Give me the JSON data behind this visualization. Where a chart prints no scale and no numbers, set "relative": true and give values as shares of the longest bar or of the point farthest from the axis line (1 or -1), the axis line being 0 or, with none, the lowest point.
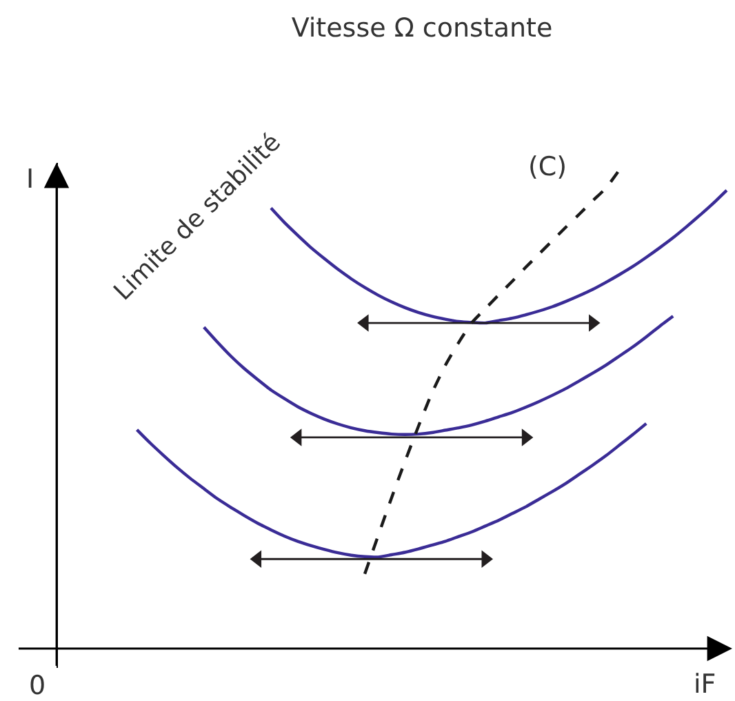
{
  "chart_data": {
    "type": "line",
    "title": "Vitesse Ω constante",
    "xlabel": "iF",
    "ylabel": "I",
    "relative": true,
    "line_style": "solid",
    "annotations": [
      "Limite de stabilité",
      "0"
    ],
    "categories": [
      null,
      null,
      null,
      null,
      null,
      null,
      null,
      null,
      null,
      null,
      null,
      null,
      null,
      null,
      null,
      null,
      null,
      null,
      null,
      null,
      null,
      null,
      null,
      null,
      null,
      null,
      null,
      null,
      null,
      null,
      null,
      null,
      null,
      null,
      null,
      null,
      null,
      null,
      null,
      null,
      null,
      null,
      null,
      null,
      null
    ],
    "series": [
      {
        "color": "#3a2c96",
        "values": [
          null,
          null,
          null,
          null,
          null,
          null,
          null,
          null,
          null,
          null,
          0.92,
          0.89,
          0.863,
          0.837,
          0.814,
          0.792,
          0.772,
          0.754,
          0.738,
          0.724,
          0.712,
          0.702,
          0.694,
          0.688,
          0.683,
          0.681,
          0.68,
          0.685,
          0.69,
          0.697,
          0.705,
          0.714,
          0.725,
          0.737,
          0.75,
          0.765,
          0.781,
          0.798,
          0.817,
          0.837,
          0.858,
          0.881,
          0.905,
          0.93,
          0.957
        ]
      },
      {
        "color": "#3a2c96",
        "values": [
          null,
          null,
          null,
          null,
          null,
          0.671,
          0.64,
          0.611,
          0.585,
          0.562,
          0.54,
          0.522,
          0.505,
          0.491,
          0.479,
          0.469,
          0.461,
          0.455,
          0.451,
          0.448,
          0.447,
          0.448,
          0.451,
          0.456,
          0.461,
          0.467,
          0.475,
          0.484,
          0.493,
          0.504,
          0.516,
          0.529,
          0.543,
          0.559,
          0.575,
          0.592,
          0.611,
          0.63,
          0.651,
          0.673,
          0.694,
          null,
          null,
          null,
          null
        ]
      },
      {
        "color": "#3a2c96",
        "values": [
          0.457,
          0.429,
          0.403,
          0.378,
          0.355,
          0.334,
          0.313,
          0.295,
          0.278,
          0.262,
          0.248,
          0.235,
          0.224,
          0.215,
          0.207,
          0.2,
          0.195,
          0.192,
          0.191,
          0.196,
          0.201,
          0.208,
          0.216,
          0.224,
          0.234,
          0.244,
          0.256,
          0.268,
          0.282,
          0.296,
          0.312,
          0.328,
          0.345,
          0.364,
          0.383,
          0.403,
          0.425,
          0.447,
          0.47,
          null,
          null,
          null,
          null,
          null,
          null
        ]
      },
      {
        "name": "(C)",
        "color": "#1a1a1a",
        "line_style": "dashed",
        "values": [
          null,
          null,
          null,
          null,
          null,
          null,
          null,
          null,
          null,
          null,
          null,
          null,
          null,
          null,
          null,
          null,
          null,
          0.156,
          0.236,
          0.315,
          0.391,
          0.464,
          0.533,
          0.591,
          0.639,
          0.681,
          0.71,
          0.739,
          0.767,
          0.796,
          0.824,
          0.852,
          0.88,
          0.907,
          0.935,
          0.962,
          1.0,
          null,
          null,
          null,
          null,
          null,
          null,
          null,
          null
        ]
      },
      {
        "color": "#231f20",
        "marker": "triangle",
        "values": [
          null,
          null,
          null,
          null,
          null,
          null,
          null,
          null,
          null,
          null,
          null,
          null,
          null,
          null,
          null,
          null,
          null,
          0.68,
          null,
          null,
          null,
          null,
          null,
          null,
          null,
          null,
          null,
          null,
          null,
          null,
          null,
          null,
          null,
          null,
          0.68,
          null,
          null,
          null,
          null,
          null,
          null,
          null,
          null,
          null,
          null
        ]
      },
      {
        "color": "#231f20",
        "marker": "triangle",
        "values": [
          null,
          null,
          null,
          null,
          null,
          null,
          null,
          null,
          null,
          null,
          null,
          null,
          0.441,
          null,
          null,
          null,
          null,
          null,
          null,
          null,
          null,
          null,
          null,
          null,
          null,
          null,
          null,
          null,
          null,
          0.441,
          null,
          null,
          null,
          null,
          null,
          null,
          null,
          null,
          null,
          null,
          null,
          null,
          null,
          null,
          null
        ]
      },
      {
        "color": "#231f20",
        "marker": "triangle",
        "values": [
          null,
          null,
          null,
          null,
          null,
          null,
          null,
          null,
          null,
          0.187,
          null,
          null,
          null,
          null,
          null,
          null,
          null,
          null,
          null,
          null,
          null,
          null,
          null,
          null,
          null,
          null,
          0.187,
          null,
          null,
          null,
          null,
          null,
          null,
          null,
          null,
          null,
          null,
          null,
          null,
          null,
          null,
          null,
          null,
          null,
          null
        ]
      }
    ]
  }
}
